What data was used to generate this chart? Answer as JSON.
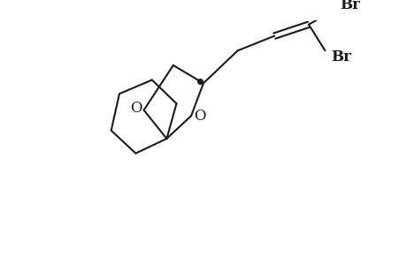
{
  "background_color": "#ffffff",
  "bond_color": "#1a1a1a",
  "line_width": 1.5,
  "figsize": [
    4.6,
    3.0
  ],
  "dpi": 100,
  "xlim": [
    0,
    460
  ],
  "ylim": [
    0,
    300
  ],
  "stereo_dot_size": 4,
  "font_size_label": 12,
  "O1_label": "O",
  "O2_label": "O",
  "Br1_label": "Br",
  "Br2_label": "Br"
}
